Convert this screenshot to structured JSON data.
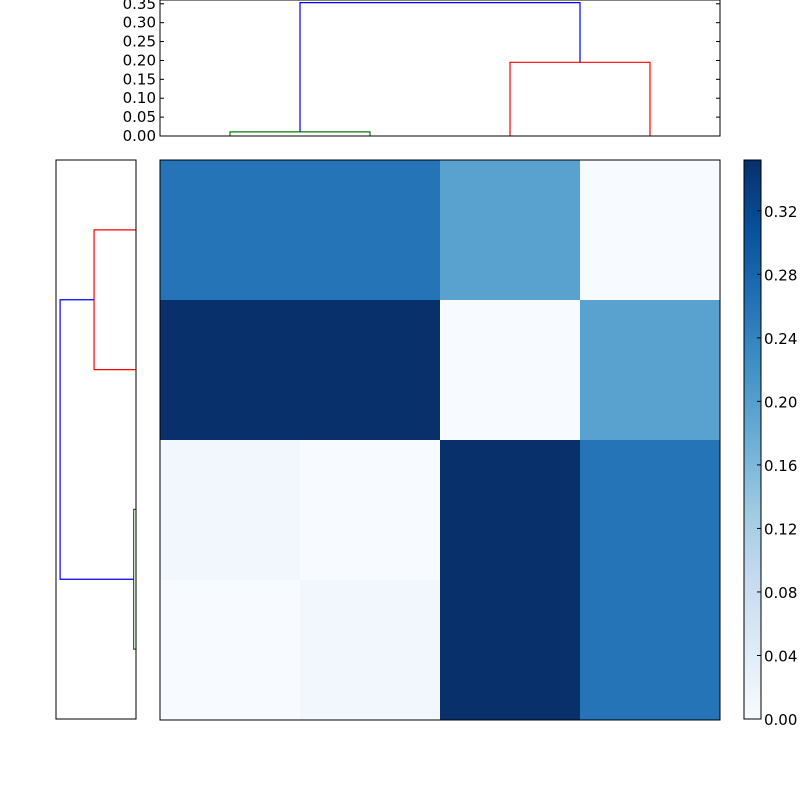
{
  "chart_data": [
    {
      "type": "dendrogram",
      "orientation": "top",
      "ylim": [
        0,
        0.36
      ],
      "yticks": [
        "0.00",
        "0.05",
        "0.10",
        "0.15",
        "0.20",
        "0.25",
        "0.30",
        "0.35"
      ],
      "links": [
        {
          "leaves": [
            0,
            1
          ],
          "height": 0.011,
          "color": "#008000"
        },
        {
          "leaves": [
            2,
            3
          ],
          "height": 0.195,
          "color": "#ff0000"
        },
        {
          "leaves": [
            "0-1",
            "2-3"
          ],
          "height": 0.353,
          "color": "#0000ff"
        }
      ]
    },
    {
      "type": "dendrogram",
      "orientation": "left",
      "xlim": [
        0.372,
        0
      ],
      "links": [
        {
          "leaves": [
            0,
            1
          ],
          "height": 0.195,
          "color": "#ff0000"
        },
        {
          "leaves": [
            2,
            3
          ],
          "height": 0.011,
          "color": "#008000"
        },
        {
          "leaves": [
            "0-1",
            "2-3"
          ],
          "height": 0.353,
          "color": "#0000ff"
        }
      ]
    },
    {
      "type": "heatmap",
      "colormap": "Blues",
      "vmin": 0,
      "vmax": 0.352,
      "values": [
        [
          0.26,
          0.26,
          0.195,
          0.0
        ],
        [
          0.352,
          0.352,
          0.0,
          0.195
        ],
        [
          0.011,
          0.0,
          0.352,
          0.26
        ],
        [
          0.0,
          0.011,
          0.352,
          0.26
        ]
      ],
      "colorbar_ticks": [
        "0.00",
        "0.04",
        "0.08",
        "0.12",
        "0.16",
        "0.20",
        "0.24",
        "0.28",
        "0.32"
      ]
    }
  ]
}
